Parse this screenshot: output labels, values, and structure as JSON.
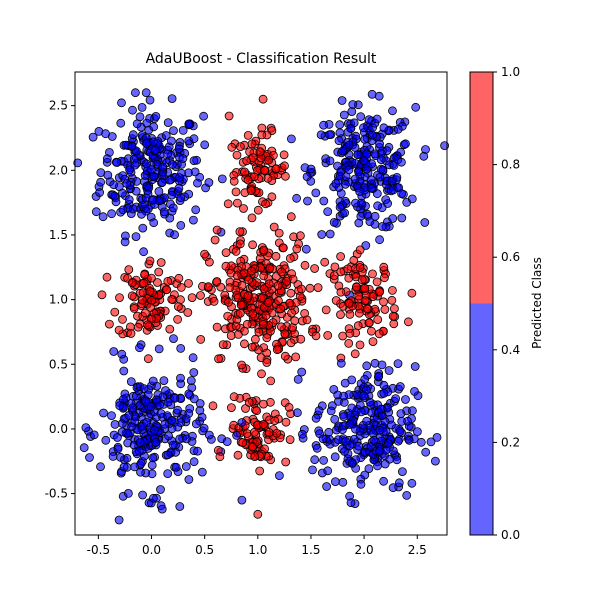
{
  "chart_data": {
    "type": "scatter",
    "title": "AdaUBoost - Classification Result",
    "xlabel": "",
    "ylabel": "",
    "xlim": [
      -0.72,
      2.78
    ],
    "ylim": [
      -0.82,
      2.76
    ],
    "xticks": [
      -0.5,
      0.0,
      0.5,
      1.0,
      1.5,
      2.0,
      2.5
    ],
    "yticks": [
      -0.5,
      0.0,
      0.5,
      1.0,
      1.5,
      2.0,
      2.5
    ],
    "grid": false,
    "colorbar": {
      "label": "Predicted Class",
      "range": [
        0.0,
        1.0
      ],
      "ticks": [
        0.0,
        0.2,
        0.4,
        0.6,
        0.8,
        1.0
      ],
      "segments": [
        {
          "from": 0.0,
          "to": 0.5,
          "color": "#6464ff"
        },
        {
          "from": 0.5,
          "to": 1.0,
          "color": "#ff6464"
        }
      ]
    },
    "colors": {
      "class_0": "#0000ff",
      "class_1": "#ff0000",
      "edge": "#000000"
    },
    "point_opacity": 0.6,
    "clusters": [
      {
        "class": 0,
        "cx": 0.0,
        "cy": 2.0,
        "spread": 0.24,
        "n": 260
      },
      {
        "class": 1,
        "cx": 1.0,
        "cy": 2.0,
        "spread": 0.14,
        "n": 90
      },
      {
        "class": 0,
        "cx": 2.0,
        "cy": 2.0,
        "spread": 0.24,
        "n": 260
      },
      {
        "class": 1,
        "cx": 0.0,
        "cy": 1.0,
        "spread": 0.16,
        "n": 110
      },
      {
        "class": 1,
        "cx": 1.0,
        "cy": 1.0,
        "spread": 0.24,
        "n": 300
      },
      {
        "class": 1,
        "cx": 2.0,
        "cy": 1.0,
        "spread": 0.16,
        "n": 110
      },
      {
        "class": 0,
        "cx": 0.0,
        "cy": 0.0,
        "spread": 0.24,
        "n": 260
      },
      {
        "class": 1,
        "cx": 1.0,
        "cy": 0.0,
        "spread": 0.14,
        "n": 90
      },
      {
        "class": 0,
        "cx": 2.0,
        "cy": 0.0,
        "spread": 0.24,
        "n": 260
      }
    ],
    "stray_points": [
      {
        "x": 1.0,
        "y": -0.66,
        "class": 1
      },
      {
        "x": 0.85,
        "y": -0.55,
        "class": 0
      },
      {
        "x": 2.45,
        "y": -0.42,
        "class": 0
      },
      {
        "x": -0.05,
        "y": 2.6,
        "class": 0
      },
      {
        "x": 1.05,
        "y": 2.55,
        "class": 1
      },
      {
        "x": 0.73,
        "y": 2.42,
        "class": 1
      },
      {
        "x": -0.52,
        "y": 1.68,
        "class": 0
      },
      {
        "x": 2.58,
        "y": -0.18,
        "class": 0
      },
      {
        "x": 0.1,
        "y": -0.62,
        "class": 0
      },
      {
        "x": 2.45,
        "y": 1.05,
        "class": 1
      },
      {
        "x": 0.85,
        "y": 0.05,
        "class": 0
      },
      {
        "x": 0.8,
        "y": -0.05,
        "class": 0
      }
    ]
  }
}
